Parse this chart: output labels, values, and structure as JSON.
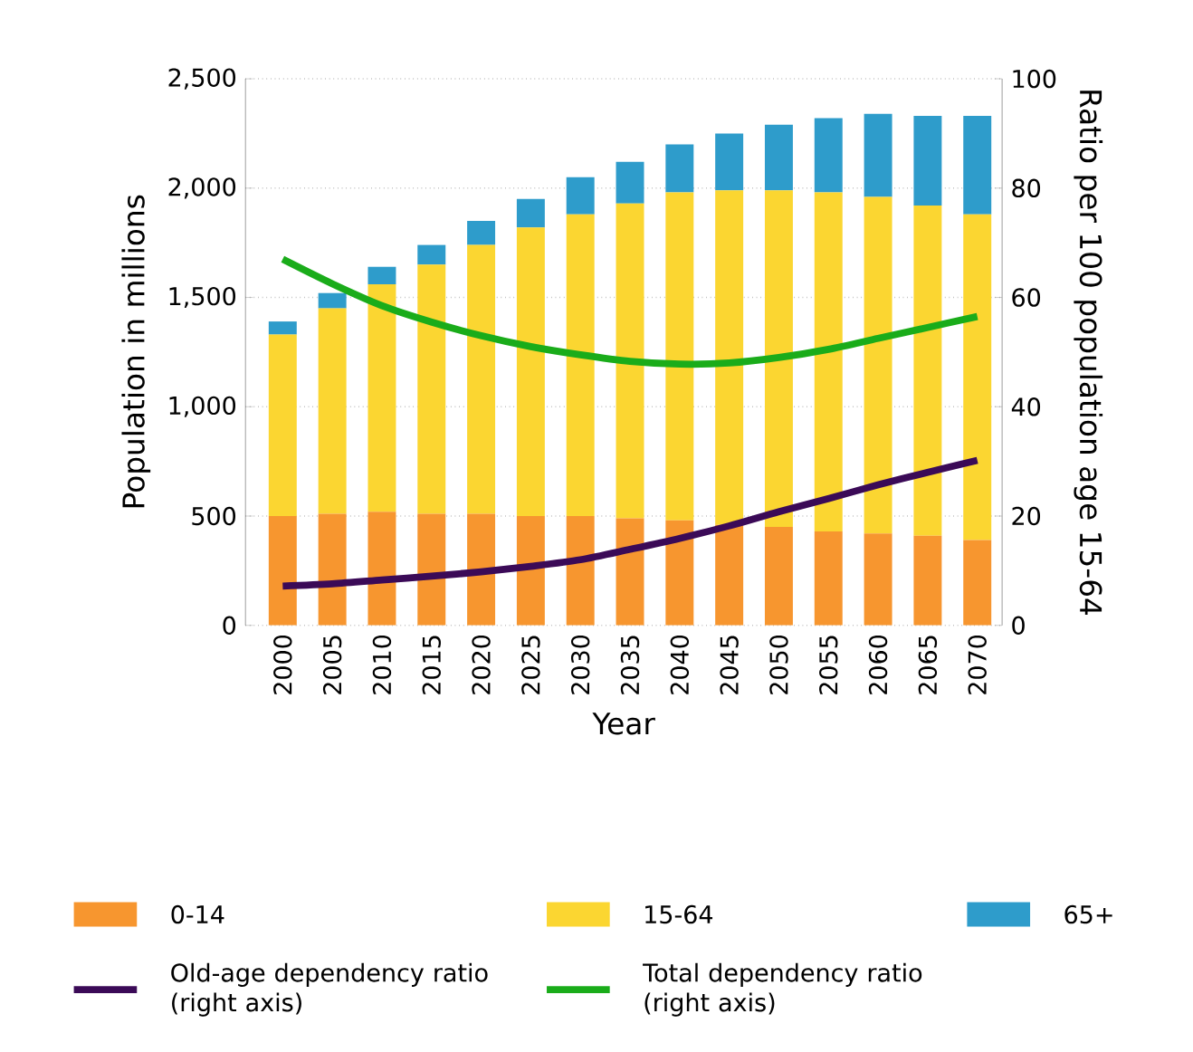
{
  "chart_data": {
    "type": "bar",
    "stacked": true,
    "xlabel": "Year",
    "ylabel": "Population in millions",
    "y2label": "Ratio per 100 population age 15-64",
    "categories": [
      "2000",
      "2005",
      "2010",
      "2015",
      "2020",
      "2025",
      "2030",
      "2035",
      "2040",
      "2045",
      "2050",
      "2055",
      "2060",
      "2065",
      "2070"
    ],
    "series": [
      {
        "name": "0-14",
        "color": "#f7962f",
        "values": [
          500,
          510,
          520,
          510,
          510,
          500,
          500,
          490,
          480,
          460,
          450,
          430,
          420,
          410,
          390
        ]
      },
      {
        "name": "15-64",
        "color": "#fbd631",
        "values": [
          830,
          940,
          1040,
          1140,
          1230,
          1320,
          1380,
          1440,
          1500,
          1530,
          1540,
          1550,
          1540,
          1510,
          1490
        ]
      },
      {
        "name": "65+",
        "color": "#2e9ccb",
        "values": [
          60,
          70,
          80,
          90,
          110,
          130,
          170,
          190,
          220,
          260,
          300,
          340,
          380,
          410,
          450
        ]
      },
      {
        "name": "Old-age dependency ratio (right axis)",
        "type": "line",
        "axis": "y2",
        "color": "#3b0a57",
        "values": [
          7.2,
          7.6,
          8.3,
          9.0,
          9.8,
          10.8,
          12.0,
          13.9,
          15.9,
          18.2,
          20.8,
          23.2,
          25.7,
          28.0,
          30.2
        ]
      },
      {
        "name": "Total dependency ratio (right axis)",
        "type": "line",
        "axis": "y2",
        "color": "#1aac1a",
        "values": [
          67,
          62.5,
          58.5,
          55.5,
          53,
          51,
          49.5,
          48.3,
          47.8,
          48,
          49,
          50.5,
          52.5,
          54.5,
          56.5
        ]
      }
    ],
    "ylim": [
      0,
      2500
    ],
    "yticks": [
      0,
      500,
      {
        "value": 1000,
        "label": "1,000"
      },
      {
        "value": 1500,
        "label": "1,500"
      },
      {
        "value": 2000,
        "label": "2,000"
      },
      {
        "value": 2500,
        "label": "2,500"
      }
    ],
    "y2lim": [
      0,
      100
    ],
    "y2ticks": [
      0,
      20,
      40,
      60,
      80,
      100
    ],
    "grid": "y",
    "legend": "bottom",
    "marker": "none",
    "line_style": "solid"
  }
}
